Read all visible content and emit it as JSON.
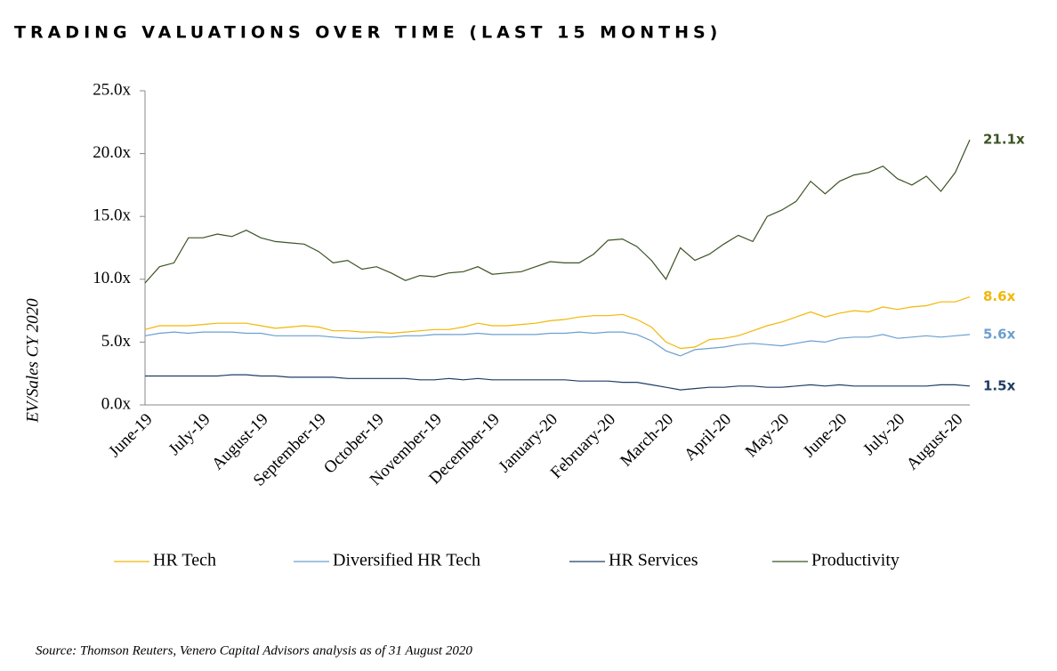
{
  "chart_data": {
    "type": "line",
    "title": "TRADING VALUATIONS OVER TIME (LAST 15 MONTHS)",
    "y_label": "EV/Sales CY 2020",
    "source": "Source: Thomson Reuters, Venero Capital Advisors analysis as of 31 August 2020",
    "categories": [
      "June-19",
      null,
      null,
      null,
      "July-19",
      null,
      null,
      null,
      "August-19",
      null,
      null,
      null,
      "September-19",
      null,
      null,
      null,
      "October-19",
      null,
      null,
      null,
      "November-19",
      null,
      null,
      null,
      "December-19",
      null,
      null,
      null,
      "January-20",
      null,
      null,
      null,
      "February-20",
      null,
      null,
      null,
      "March-20",
      null,
      null,
      null,
      "April-20",
      null,
      null,
      null,
      "May-20",
      null,
      null,
      null,
      "June-20",
      null,
      null,
      null,
      "July-20",
      null,
      null,
      null,
      "August-20",
      null
    ],
    "ylim": [
      0,
      25
    ],
    "yticks": [
      {
        "value": 0,
        "label": "0.0x"
      },
      {
        "value": 5,
        "label": "5.0x"
      },
      {
        "value": 10,
        "label": "10.0x"
      },
      {
        "value": 15,
        "label": "15.0x"
      },
      {
        "value": 20,
        "label": "20.0x"
      },
      {
        "value": 25,
        "label": "25.0x"
      }
    ],
    "series": [
      {
        "name": "HR Tech",
        "color": "#f2b705",
        "end_label": "8.6x",
        "values": [
          6.0,
          6.3,
          6.3,
          6.3,
          6.4,
          6.5,
          6.5,
          6.5,
          6.3,
          6.1,
          6.2,
          6.3,
          6.2,
          5.9,
          5.9,
          5.8,
          5.8,
          5.7,
          5.8,
          5.9,
          6.0,
          6.0,
          6.2,
          6.5,
          6.3,
          6.3,
          6.4,
          6.5,
          6.7,
          6.8,
          7.0,
          7.1,
          7.1,
          7.2,
          6.8,
          6.2,
          5.0,
          4.5,
          4.6,
          5.2,
          5.3,
          5.5,
          5.9,
          6.3,
          6.6,
          7.0,
          7.4,
          7.0,
          7.3,
          7.5,
          7.4,
          7.8,
          7.6,
          7.8,
          7.9,
          8.2,
          8.2,
          8.6
        ]
      },
      {
        "name": "Diversified HR Tech",
        "color": "#6b9fcf",
        "end_label": "5.6x",
        "values": [
          5.5,
          5.7,
          5.8,
          5.7,
          5.8,
          5.8,
          5.8,
          5.7,
          5.7,
          5.5,
          5.5,
          5.5,
          5.5,
          5.4,
          5.3,
          5.3,
          5.4,
          5.4,
          5.5,
          5.5,
          5.6,
          5.6,
          5.6,
          5.7,
          5.6,
          5.6,
          5.6,
          5.6,
          5.7,
          5.7,
          5.8,
          5.7,
          5.8,
          5.8,
          5.6,
          5.1,
          4.3,
          3.9,
          4.4,
          4.5,
          4.6,
          4.8,
          4.9,
          4.8,
          4.7,
          4.9,
          5.1,
          5.0,
          5.3,
          5.4,
          5.4,
          5.6,
          5.3,
          5.4,
          5.5,
          5.4,
          5.5,
          5.6
        ]
      },
      {
        "name": "HR Services",
        "color": "#1f3d63",
        "end_label": "1.5x",
        "values": [
          2.3,
          2.3,
          2.3,
          2.3,
          2.3,
          2.3,
          2.4,
          2.4,
          2.3,
          2.3,
          2.2,
          2.2,
          2.2,
          2.2,
          2.1,
          2.1,
          2.1,
          2.1,
          2.1,
          2.0,
          2.0,
          2.1,
          2.0,
          2.1,
          2.0,
          2.0,
          2.0,
          2.0,
          2.0,
          2.0,
          1.9,
          1.9,
          1.9,
          1.8,
          1.8,
          1.6,
          1.4,
          1.2,
          1.3,
          1.4,
          1.4,
          1.5,
          1.5,
          1.4,
          1.4,
          1.5,
          1.6,
          1.5,
          1.6,
          1.5,
          1.5,
          1.5,
          1.5,
          1.5,
          1.5,
          1.6,
          1.6,
          1.5
        ]
      },
      {
        "name": "Productivity",
        "color": "#3b5323",
        "end_label": "21.1x",
        "values": [
          9.7,
          11.0,
          11.3,
          13.3,
          13.3,
          13.6,
          13.4,
          13.9,
          13.3,
          13.0,
          12.9,
          12.8,
          12.2,
          11.3,
          11.5,
          10.8,
          11.0,
          10.5,
          9.9,
          10.3,
          10.2,
          10.5,
          10.6,
          11.0,
          10.4,
          10.5,
          10.6,
          11.0,
          11.4,
          11.3,
          11.3,
          12.0,
          13.1,
          13.2,
          12.6,
          11.5,
          10.0,
          12.5,
          11.5,
          12.0,
          12.8,
          13.5,
          13.0,
          15.0,
          15.5,
          16.2,
          17.8,
          16.8,
          17.8,
          18.3,
          18.5,
          19.0,
          18.0,
          17.5,
          18.2,
          17.0,
          18.5,
          21.1
        ]
      }
    ]
  }
}
